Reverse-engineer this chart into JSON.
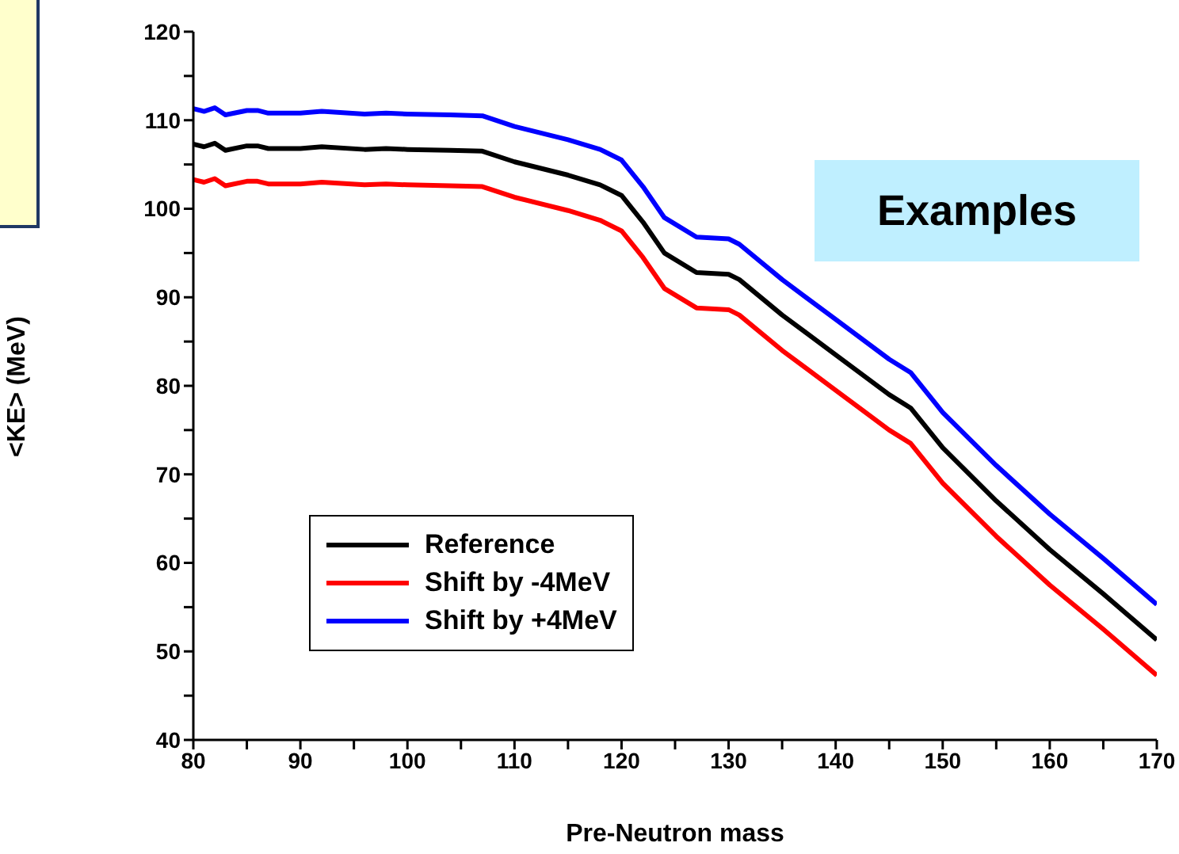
{
  "chart_data": {
    "type": "line",
    "xlabel": "Pre-Neutron mass",
    "ylabel": "<KE> (MeV)",
    "annotations": [
      "Examples"
    ],
    "x": [
      80,
      81,
      82,
      83,
      85,
      86,
      87,
      90,
      92,
      96,
      98,
      100,
      104,
      107,
      110,
      115,
      118,
      120,
      122,
      124,
      127,
      130,
      131,
      135,
      140,
      145,
      147,
      150,
      155,
      160,
      165,
      170
    ],
    "series": [
      {
        "name": "Reference",
        "color": "#000000",
        "values": [
          107.3,
          107.0,
          107.4,
          106.6,
          107.1,
          107.1,
          106.8,
          106.8,
          107.0,
          106.7,
          106.8,
          106.7,
          106.6,
          106.5,
          105.3,
          103.8,
          102.7,
          101.5,
          98.5,
          95.0,
          92.8,
          92.6,
          92.0,
          88.0,
          83.5,
          79.0,
          77.5,
          73.0,
          67.0,
          61.5,
          56.5,
          51.3
        ]
      },
      {
        "name": "Shift by -4MeV",
        "color": "#ff0000",
        "values": [
          103.3,
          103.0,
          103.4,
          102.6,
          103.1,
          103.1,
          102.8,
          102.8,
          103.0,
          102.7,
          102.8,
          102.7,
          102.6,
          102.5,
          101.3,
          99.8,
          98.7,
          97.5,
          94.5,
          91.0,
          88.8,
          88.6,
          88.0,
          84.0,
          79.5,
          75.0,
          73.5,
          69.0,
          63.0,
          57.5,
          52.5,
          47.3
        ]
      },
      {
        "name": "Shift by +4MeV",
        "color": "#0000ff",
        "values": [
          111.3,
          111.0,
          111.4,
          110.6,
          111.1,
          111.1,
          110.8,
          110.8,
          111.0,
          110.7,
          110.8,
          110.7,
          110.6,
          110.5,
          109.3,
          107.8,
          106.7,
          105.5,
          102.5,
          99.0,
          96.8,
          96.6,
          96.0,
          92.0,
          87.5,
          83.0,
          81.5,
          77.0,
          71.0,
          65.5,
          60.5,
          55.3
        ]
      }
    ],
    "xlim": [
      80,
      170
    ],
    "xticks": [
      80,
      {
        "value": 85,
        "label": null
      },
      90,
      {
        "value": 95,
        "label": null
      },
      100,
      {
        "value": 105,
        "label": null
      },
      110,
      {
        "value": 115,
        "label": null
      },
      120,
      {
        "value": 125,
        "label": null
      },
      130,
      {
        "value": 135,
        "label": null
      },
      140,
      {
        "value": 145,
        "label": null
      },
      150,
      {
        "value": 155,
        "label": null
      },
      160,
      {
        "value": 165,
        "label": null
      },
      170
    ],
    "ylim": [
      40,
      120
    ],
    "yticks": [
      40,
      {
        "value": 45,
        "label": null
      },
      50,
      {
        "value": 55,
        "label": null
      },
      60,
      {
        "value": 65,
        "label": null
      },
      70,
      {
        "value": 75,
        "label": null
      },
      80,
      {
        "value": 85,
        "label": null
      },
      90,
      {
        "value": 95,
        "label": null
      },
      100,
      {
        "value": 105,
        "label": null
      },
      110,
      {
        "value": 115,
        "label": null
      },
      120
    ],
    "grid": false,
    "legend": "bottom left",
    "marker": "none",
    "line_style": "solid"
  }
}
